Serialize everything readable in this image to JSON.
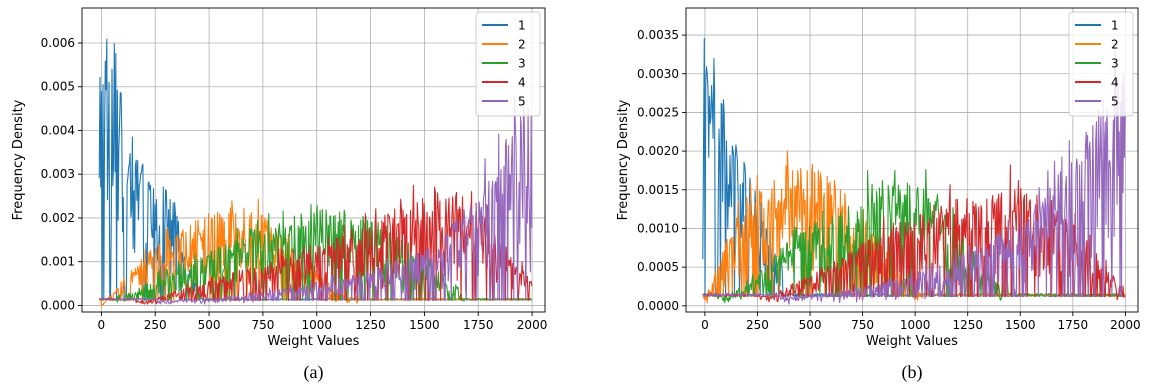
{
  "chart_data": [
    {
      "type": "line",
      "caption": "(a)",
      "xlabel": "Weight Values",
      "ylabel": "Frequency Density",
      "xlim": [
        -90,
        2060
      ],
      "ylim": [
        -0.00015,
        0.0068
      ],
      "xticks": [
        0,
        250,
        500,
        750,
        1000,
        1250,
        1500,
        1750,
        2000
      ],
      "yticks": [
        0.0,
        0.001,
        0.002,
        0.003,
        0.004,
        0.005,
        0.006
      ],
      "ytick_labels": [
        "0.000",
        "0.001",
        "0.002",
        "0.003",
        "0.004",
        "0.005",
        "0.006"
      ],
      "grid": true,
      "legend_position": "top-right",
      "series": [
        {
          "name": "1",
          "color": "#1f77b4",
          "envelope": {
            "x": [
              0,
              20,
              40,
              60,
              80,
              100,
              130,
              160,
              200,
              250,
              300,
              330,
              360,
              380,
              400
            ],
            "y": [
              0.0055,
              0.0062,
              0.0058,
              0.0052,
              0.0048,
              0.0045,
              0.004,
              0.0035,
              0.0031,
              0.0028,
              0.0026,
              0.0023,
              0.0018,
              0.0012,
              0.0008
            ]
          }
        },
        {
          "name": "2",
          "color": "#ff7f0e",
          "envelope": {
            "x": [
              0,
              60,
              100,
              150,
              250,
              350,
              450,
              550,
              650,
              750,
              850,
              950,
              1050,
              1150
            ],
            "y": [
              0.0,
              0.0003,
              0.0006,
              0.0009,
              0.0013,
              0.0016,
              0.0019,
              0.0021,
              0.0022,
              0.002,
              0.0015,
              0.001,
              0.0005,
              0.0002
            ]
          }
        },
        {
          "name": "3",
          "color": "#2ca02c",
          "envelope": {
            "x": [
              100,
              250,
              400,
              550,
              700,
              850,
              1000,
              1150,
              1300,
              1450,
              1550,
              1650
            ],
            "y": [
              0.0002,
              0.0006,
              0.001,
              0.0013,
              0.0016,
              0.0019,
              0.0021,
              0.0021,
              0.0018,
              0.0012,
              0.0008,
              0.0004
            ]
          }
        },
        {
          "name": "4",
          "color": "#d62728",
          "envelope": {
            "x": [
              200,
              400,
              600,
              800,
              1000,
              1200,
              1400,
              1550,
              1700,
              1800,
              1900,
              2000
            ],
            "y": [
              0.0001,
              0.0004,
              0.0007,
              0.001,
              0.0013,
              0.0017,
              0.0021,
              0.0025,
              0.0023,
              0.0018,
              0.0012,
              0.0005
            ]
          }
        },
        {
          "name": "5",
          "color": "#9467bd",
          "envelope": {
            "x": [
              300,
              600,
              900,
              1200,
              1400,
              1550,
              1650,
              1750,
              1850,
              1950,
              2000
            ],
            "y": [
              0.0001,
              0.0002,
              0.0004,
              0.0007,
              0.001,
              0.0014,
              0.0019,
              0.0025,
              0.0033,
              0.0042,
              0.0045
            ]
          }
        }
      ]
    },
    {
      "type": "line",
      "caption": "(b)",
      "xlabel": "Weight Values",
      "ylabel": "Frequency Density",
      "xlim": [
        -90,
        2060
      ],
      "ylim": [
        -8e-05,
        0.00385
      ],
      "xticks": [
        0,
        250,
        500,
        750,
        1000,
        1250,
        1500,
        1750,
        2000
      ],
      "yticks": [
        0.0,
        0.0005,
        0.001,
        0.0015,
        0.002,
        0.0025,
        0.003,
        0.0035
      ],
      "ytick_labels": [
        "0.0000",
        "0.0005",
        "0.0010",
        "0.0015",
        "0.0020",
        "0.0025",
        "0.0030",
        "0.0035"
      ],
      "grid": true,
      "legend_position": "top-right",
      "series": [
        {
          "name": "1",
          "color": "#1f77b4",
          "envelope": {
            "x": [
              0,
              20,
              40,
              60,
              80,
              100,
              130,
              160,
              200,
              230,
              260,
              300,
              330
            ],
            "y": [
              0.003,
              0.0033,
              0.0031,
              0.0029,
              0.0027,
              0.0024,
              0.0021,
              0.0019,
              0.0017,
              0.0015,
              0.0013,
              0.001,
              0.0006
            ]
          }
        },
        {
          "name": "2",
          "color": "#ff7f0e",
          "envelope": {
            "x": [
              0,
              50,
              100,
              150,
              250,
              350,
              450,
              550,
              650,
              750,
              850,
              950,
              1000
            ],
            "y": [
              0.0001,
              0.0004,
              0.0008,
              0.0011,
              0.0014,
              0.0016,
              0.0017,
              0.0017,
              0.0015,
              0.0012,
              0.0008,
              0.0004,
              0.0002
            ]
          }
        },
        {
          "name": "3",
          "color": "#2ca02c",
          "envelope": {
            "x": [
              100,
              250,
              400,
              550,
              700,
              850,
              1000,
              1100,
              1200,
              1300,
              1400
            ],
            "y": [
              0.0001,
              0.0004,
              0.0008,
              0.0011,
              0.0013,
              0.0015,
              0.0016,
              0.0014,
              0.001,
              0.0006,
              0.0003
            ]
          }
        },
        {
          "name": "4",
          "color": "#d62728",
          "envelope": {
            "x": [
              300,
              500,
              700,
              900,
              1100,
              1300,
              1500,
              1650,
              1800,
              1900,
              2000
            ],
            "y": [
              0.0001,
              0.0004,
              0.0007,
              0.001,
              0.0012,
              0.0014,
              0.0015,
              0.0013,
              0.0009,
              0.0005,
              0.0002
            ]
          }
        },
        {
          "name": "5",
          "color": "#9467bd",
          "envelope": {
            "x": [
              400,
              700,
              1000,
              1200,
              1400,
              1550,
              1650,
              1750,
              1850,
              1950,
              2000
            ],
            "y": [
              0.0001,
              0.0002,
              0.0004,
              0.0006,
              0.0009,
              0.0012,
              0.0015,
              0.0019,
              0.0024,
              0.0028,
              0.003
            ]
          }
        }
      ]
    }
  ]
}
